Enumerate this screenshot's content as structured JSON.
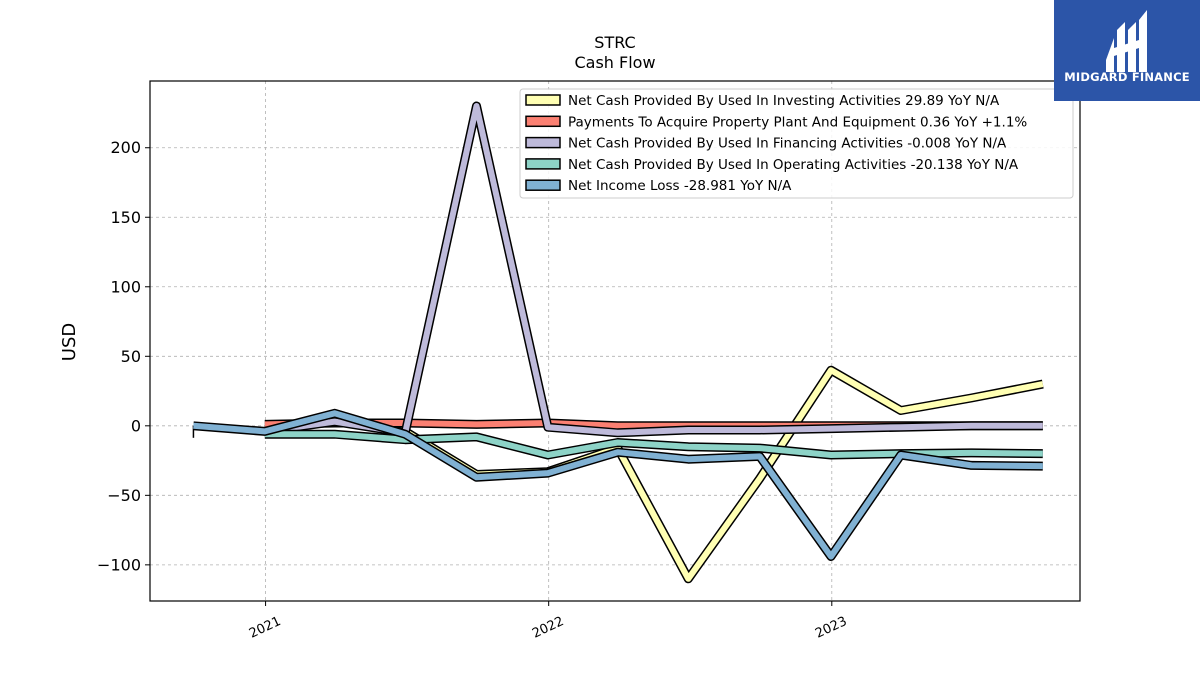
{
  "brand": {
    "name": "MIDGARD FINANCE",
    "color": "#2c55a8"
  },
  "chart_data": {
    "type": "line",
    "title": "STRC",
    "subtitle": "Cash Flow",
    "ylabel": "USD",
    "xlabel": "",
    "ylim": [
      -126,
      248
    ],
    "xlim": [
      "2020-08-05",
      "2023-11-17"
    ],
    "yticks": [
      -100,
      -50,
      0,
      50,
      100,
      150,
      200
    ],
    "ytick_labels": [
      "−100",
      "−50",
      "0",
      "50",
      "100",
      "150",
      "200"
    ],
    "xticks": [
      "2021-01-01",
      "2022-01-01",
      "2023-01-01"
    ],
    "xtick_labels": [
      "2021",
      "2022",
      "2023"
    ],
    "grid": true,
    "legend_position": "top-right",
    "x": [
      "2020-09-30",
      "2020-12-31",
      "2021-03-31",
      "2021-06-30",
      "2021-09-30",
      "2021-12-31",
      "2022-03-31",
      "2022-06-30",
      "2022-09-30",
      "2022-12-31",
      "2023-03-31",
      "2023-06-30",
      "2023-09-30"
    ],
    "series": [
      {
        "name": "Net Cash Provided By Used In Investing Activities",
        "legend_label": "Net Cash Provided By Used In Investing Activities  29.89 YoY N/A",
        "color": "#ffffb3",
        "values": [
          null,
          -4,
          7,
          -4,
          -35,
          -33,
          -16,
          -110,
          -38,
          40,
          11,
          20,
          30
        ]
      },
      {
        "name": "Payments To Acquire Property Plant And Equipment",
        "legend_label": "Payments To Acquire Property Plant And Equipment  0.36 YoY +1.1%",
        "color": "#fb8072",
        "values": [
          null,
          1,
          2,
          2,
          1,
          2,
          0,
          0,
          0,
          0,
          0,
          0,
          0
        ]
      },
      {
        "name": "Net Cash Provided By Used In Financing Activities",
        "legend_label": "Net Cash Provided By Used In Financing Activities  -0.008 YoY N/A",
        "color": "#bebada",
        "values": [
          null,
          -4,
          3,
          -5,
          230,
          -1,
          -5,
          -3,
          -3,
          -2,
          -1,
          0,
          0
        ]
      },
      {
        "name": "Net Cash Provided By Used In Operating Activities",
        "legend_label": "Net Cash Provided By Used In Operating Activities  -20.138 YoY N/A",
        "color": "#8dd3c7",
        "values": [
          null,
          -6,
          -6,
          -10,
          -8,
          -21,
          -12,
          -15,
          -16,
          -21,
          -20,
          -19.5,
          -20
        ]
      },
      {
        "name": "Net Income Loss",
        "legend_label": "Net Income Loss  -28.981 YoY N/A",
        "color": "#80b1d3",
        "values": [
          0,
          -4,
          9,
          -6,
          -37,
          -34,
          -19,
          -24,
          -22,
          -94,
          -21,
          -28.5,
          -29
        ]
      }
    ]
  }
}
